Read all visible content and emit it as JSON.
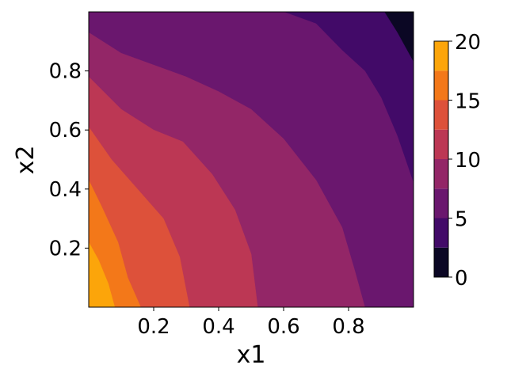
{
  "chart_data": {
    "type": "heatmap",
    "subtype": "filled-contour",
    "title": "",
    "xlabel": "x1",
    "ylabel": "x2",
    "xlim": [
      0.0,
      1.0
    ],
    "ylim": [
      0.0,
      1.0
    ],
    "x_ticks": [
      0.2,
      0.4,
      0.6,
      0.8
    ],
    "y_ticks": [
      0.2,
      0.4,
      0.6,
      0.8
    ],
    "x_tick_labels": [
      "0.2",
      "0.4",
      "0.6",
      "0.8"
    ],
    "y_tick_labels": [
      "0.2",
      "0.4",
      "0.6",
      "0.8"
    ],
    "colormap": "inferno",
    "grid": false,
    "colorbar": {
      "levels": [
        0,
        2.5,
        5,
        7.5,
        10,
        12.5,
        15,
        17.5,
        20
      ],
      "tick_values": [
        0,
        5,
        10,
        15,
        20
      ],
      "tick_labels": [
        "0",
        "5",
        "10",
        "15",
        "20"
      ],
      "colors": [
        "#0b0724",
        "#420a68",
        "#6a176e",
        "#932667",
        "#bc3754",
        "#dd513a",
        "#f37819",
        "#fca50a",
        "#f0ed71"
      ]
    },
    "contour_boundaries": [
      {
        "level": 17.5,
        "points": [
          [
            0.0,
            0.22
          ],
          [
            0.03,
            0.16
          ],
          [
            0.06,
            0.08
          ],
          [
            0.08,
            0.0
          ]
        ]
      },
      {
        "level": 15.0,
        "points": [
          [
            0.0,
            0.43
          ],
          [
            0.04,
            0.34
          ],
          [
            0.09,
            0.22
          ],
          [
            0.12,
            0.1
          ],
          [
            0.16,
            0.0
          ]
        ]
      },
      {
        "level": 12.5,
        "points": [
          [
            0.0,
            0.61
          ],
          [
            0.07,
            0.5
          ],
          [
            0.15,
            0.4
          ],
          [
            0.23,
            0.3
          ],
          [
            0.28,
            0.17
          ],
          [
            0.31,
            0.0
          ]
        ]
      },
      {
        "level": 10.0,
        "points": [
          [
            0.0,
            0.78
          ],
          [
            0.1,
            0.67
          ],
          [
            0.2,
            0.6
          ],
          [
            0.29,
            0.56
          ],
          [
            0.38,
            0.45
          ],
          [
            0.45,
            0.33
          ],
          [
            0.5,
            0.18
          ],
          [
            0.52,
            0.0
          ]
        ]
      },
      {
        "level": 7.5,
        "points": [
          [
            0.0,
            0.93
          ],
          [
            0.1,
            0.86
          ],
          [
            0.2,
            0.82
          ],
          [
            0.3,
            0.78
          ],
          [
            0.4,
            0.73
          ],
          [
            0.5,
            0.67
          ],
          [
            0.6,
            0.57
          ],
          [
            0.7,
            0.43
          ],
          [
            0.78,
            0.27
          ],
          [
            0.82,
            0.12
          ],
          [
            0.85,
            0.0
          ]
        ]
      },
      {
        "level": 5.0,
        "points": [
          [
            0.6,
            1.0
          ],
          [
            0.7,
            0.96
          ],
          [
            0.78,
            0.87
          ],
          [
            0.85,
            0.8
          ],
          [
            0.9,
            0.71
          ],
          [
            0.95,
            0.58
          ],
          [
            1.0,
            0.42
          ]
        ]
      },
      {
        "level": 2.5,
        "points": [
          [
            0.91,
            1.0
          ],
          [
            0.95,
            0.93
          ],
          [
            1.0,
            0.83
          ]
        ]
      }
    ]
  }
}
